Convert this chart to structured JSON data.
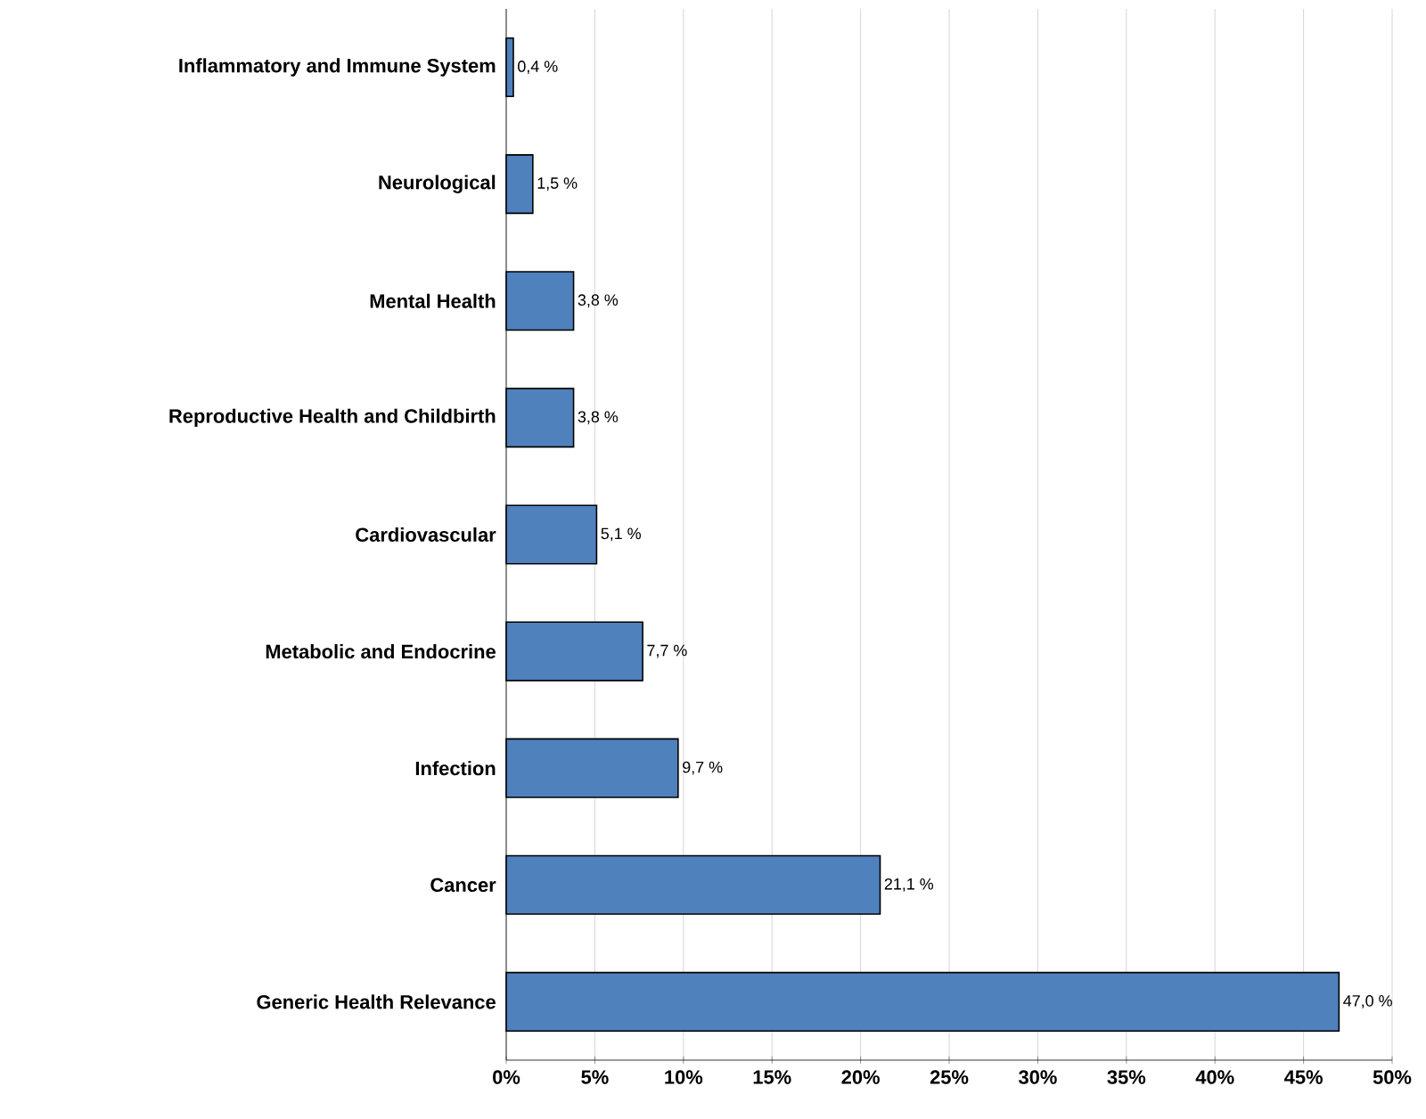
{
  "chart_data": {
    "type": "bar",
    "orientation": "horizontal",
    "categories": [
      "Inflammatory and Immune System",
      "Neurological",
      "Mental Health",
      "Reproductive Health and Childbirth",
      "Cardiovascular",
      "Metabolic and Endocrine",
      "Infection",
      "Cancer",
      "Generic Health Relevance"
    ],
    "values": [
      0.4,
      1.5,
      3.8,
      3.8,
      5.1,
      7.7,
      9.7,
      21.1,
      47.0
    ],
    "value_labels": [
      "0,4 %",
      "1,5 %",
      "3,8 %",
      "3,8 %",
      "5,1 %",
      "7,7 %",
      "9,7 %",
      "21,1 %",
      "47,0 %"
    ],
    "color": "#4f81bd",
    "xlim": [
      0,
      50
    ],
    "xticks": [
      {
        "value": 0,
        "label": "0%"
      },
      {
        "value": 5,
        "label": "5%"
      },
      {
        "value": 10,
        "label": "10%"
      },
      {
        "value": 15,
        "label": "15%"
      },
      {
        "value": 20,
        "label": "20%"
      },
      {
        "value": 25,
        "label": "25%"
      },
      {
        "value": 30,
        "label": "30%"
      },
      {
        "value": 35,
        "label": "35%"
      },
      {
        "value": 40,
        "label": "40%"
      },
      {
        "value": 45,
        "label": "45%"
      },
      {
        "value": 50,
        "label": "50%"
      }
    ],
    "grid": "x"
  }
}
